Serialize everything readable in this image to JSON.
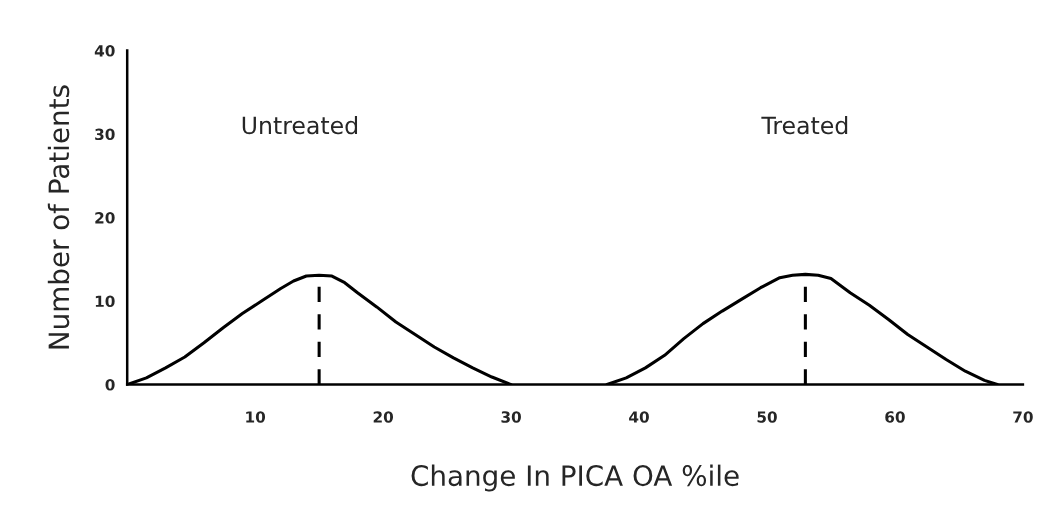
{
  "chart_data": {
    "type": "line",
    "xlabel": "Change In PICA OA %ile",
    "ylabel": "Number of Patients",
    "series": [
      {
        "color": "#000000",
        "x": [
          0,
          1.5,
          3,
          4.5,
          6,
          7.5,
          9,
          10.5,
          12,
          13,
          14,
          15,
          16,
          17,
          18,
          19.5,
          21,
          22.5,
          24,
          25.5,
          27,
          28.5,
          30
        ],
        "values": [
          0,
          0.8,
          2,
          3.3,
          5,
          6.8,
          8.5,
          10,
          11.5,
          12.4,
          13,
          13.1,
          13,
          12.2,
          11,
          9.3,
          7.5,
          6,
          4.5,
          3.2,
          2,
          0.9,
          0
        ]
      },
      {
        "color": "#000000",
        "x": [
          37.5,
          39,
          40.5,
          42,
          43.5,
          45,
          46.5,
          48,
          49.5,
          51,
          52,
          53,
          54,
          55,
          56.5,
          58,
          59.5,
          61,
          62.5,
          64,
          65.5,
          67,
          68
        ],
        "values": [
          0,
          0.8,
          2,
          3.5,
          5.5,
          7.3,
          8.8,
          10.2,
          11.6,
          12.8,
          13.1,
          13.2,
          13.1,
          12.7,
          11,
          9.5,
          7.8,
          6,
          4.5,
          3,
          1.6,
          0.5,
          0
        ]
      },
      {
        "type": "line",
        "line_style": "dashed",
        "color": "#000000",
        "x": [
          15,
          15
        ],
        "values": [
          0,
          13.1
        ]
      },
      {
        "type": "line",
        "line_style": "dashed",
        "color": "#000000",
        "x": [
          53,
          53
        ],
        "values": [
          0,
          13.2
        ]
      }
    ],
    "annotations": [
      "Untreated",
      "Treated"
    ],
    "xlim": [
      0,
      70
    ],
    "xticks": [
      10,
      20,
      30,
      40,
      50,
      60,
      70
    ],
    "ylim": [
      0,
      40
    ],
    "yticks": [
      0,
      10,
      20,
      30,
      40
    ],
    "grid": false,
    "legend": false,
    "line_style": "solid"
  }
}
